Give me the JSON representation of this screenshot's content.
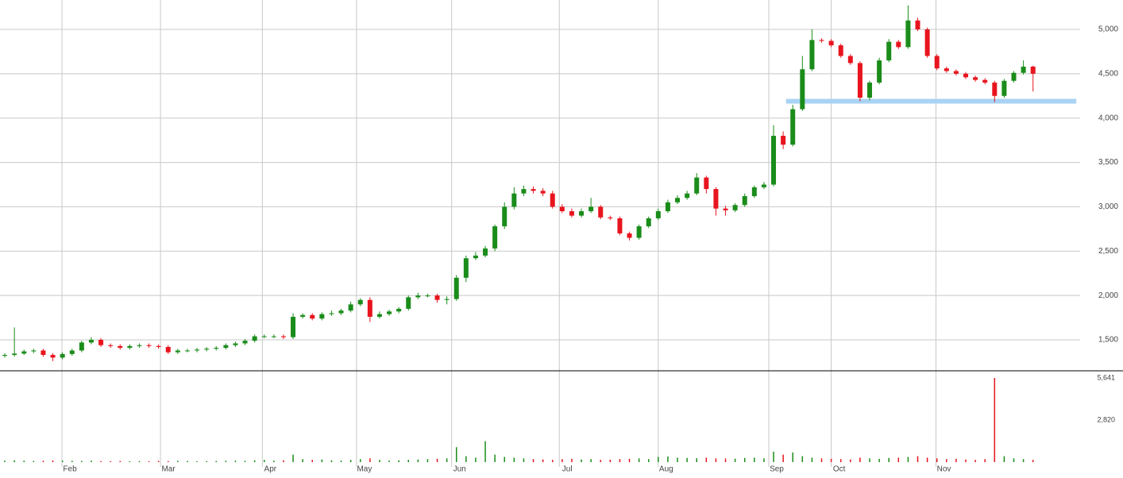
{
  "chart_data": {
    "type": "candlestick",
    "open": [
      1320,
      1330,
      1345,
      1370,
      1380,
      1330,
      1300,
      1340,
      1380,
      1470,
      1500,
      1440,
      1430,
      1410,
      1430,
      1440,
      1430,
      1420,
      1360,
      1380,
      1380,
      1390,
      1400,
      1410,
      1440,
      1460,
      1490,
      1540,
      1540,
      1540,
      1530,
      1760,
      1780,
      1740,
      1790,
      1800,
      1830,
      1900,
      1950,
      1760,
      1790,
      1820,
      1850,
      1980,
      2000,
      2000,
      1950,
      1960,
      2200,
      2420,
      2450,
      2530,
      2780,
      3000,
      3150,
      3200,
      3180,
      3150,
      3000,
      2950,
      2900,
      2950,
      3000,
      2880,
      2870,
      2700,
      2650,
      2780,
      2870,
      2950,
      3050,
      3100,
      3150,
      3330,
      3200,
      2980,
      2960,
      3020,
      3120,
      3220,
      3250,
      3800,
      3700,
      4100,
      4550,
      4880,
      4870,
      4820,
      4700,
      4620,
      4230,
      4400,
      4650,
      4860,
      4800,
      5100,
      5000,
      4700,
      4560,
      4530,
      4500,
      4460,
      4430,
      4400,
      4250,
      4420,
      4510,
      4580
    ],
    "high": [
      1350,
      1640,
      1390,
      1400,
      1400,
      1350,
      1360,
      1400,
      1490,
      1530,
      1520,
      1460,
      1450,
      1450,
      1460,
      1460,
      1450,
      1440,
      1400,
      1400,
      1410,
      1420,
      1430,
      1460,
      1480,
      1510,
      1560,
      1560,
      1560,
      1560,
      1800,
      1800,
      1800,
      1810,
      1830,
      1850,
      1930,
      1970,
      1980,
      1820,
      1840,
      1870,
      2000,
      2030,
      2020,
      2020,
      1990,
      2230,
      2450,
      2490,
      2560,
      2800,
      3050,
      3220,
      3240,
      3230,
      3210,
      3180,
      3030,
      2980,
      2980,
      3100,
      3020,
      2900,
      2890,
      2720,
      2800,
      2890,
      2980,
      3080,
      3130,
      3180,
      3380,
      3350,
      3220,
      3010,
      3040,
      3150,
      3240,
      3280,
      3920,
      3850,
      4150,
      4700,
      5000,
      4900,
      4890,
      4840,
      4720,
      4640,
      4420,
      4680,
      4890,
      4880,
      5270,
      5130,
      5020,
      4720,
      4580,
      4550,
      4520,
      4480,
      4450,
      4420,
      4440,
      4530,
      4650,
      4590
    ],
    "low": [
      1300,
      1310,
      1330,
      1350,
      1310,
      1260,
      1280,
      1320,
      1360,
      1450,
      1420,
      1410,
      1390,
      1390,
      1410,
      1410,
      1400,
      1340,
      1340,
      1360,
      1360,
      1370,
      1380,
      1390,
      1420,
      1440,
      1470,
      1520,
      1520,
      1510,
      1510,
      1740,
      1720,
      1720,
      1770,
      1780,
      1810,
      1880,
      1700,
      1740,
      1770,
      1800,
      1830,
      1960,
      1980,
      1920,
      1900,
      1940,
      2150,
      2400,
      2430,
      2500,
      2750,
      2970,
      3120,
      3150,
      3120,
      2980,
      2930,
      2880,
      2880,
      2930,
      2860,
      2850,
      2680,
      2620,
      2630,
      2760,
      2850,
      2930,
      3030,
      3080,
      3130,
      3150,
      2900,
      2900,
      2940,
      3000,
      3100,
      3200,
      3230,
      3650,
      3680,
      4080,
      4530,
      4850,
      4800,
      4680,
      4600,
      4190,
      4200,
      4380,
      4630,
      4780,
      4780,
      4980,
      4680,
      4540,
      4510,
      4480,
      4440,
      4410,
      4380,
      4180,
      4230,
      4400,
      4490,
      4300
    ],
    "close": [
      1330,
      1345,
      1370,
      1380,
      1330,
      1300,
      1340,
      1380,
      1470,
      1500,
      1440,
      1430,
      1410,
      1430,
      1440,
      1430,
      1420,
      1360,
      1380,
      1380,
      1390,
      1400,
      1410,
      1440,
      1460,
      1490,
      1540,
      1540,
      1540,
      1530,
      1760,
      1780,
      1740,
      1790,
      1800,
      1830,
      1900,
      1950,
      1760,
      1790,
      1820,
      1850,
      1980,
      2000,
      2000,
      1950,
      1960,
      2200,
      2420,
      2450,
      2530,
      2780,
      3000,
      3150,
      3200,
      3180,
      3150,
      3000,
      2950,
      2900,
      2950,
      3000,
      2880,
      2870,
      2700,
      2650,
      2780,
      2870,
      2950,
      3050,
      3100,
      3150,
      3330,
      3200,
      2980,
      2960,
      3020,
      3120,
      3220,
      3250,
      3800,
      3700,
      4100,
      4550,
      4880,
      4870,
      4820,
      4700,
      4620,
      4230,
      4400,
      4650,
      4860,
      4800,
      5100,
      5000,
      4700,
      4560,
      4530,
      4500,
      4460,
      4430,
      4400,
      4250,
      4420,
      4510,
      4580,
      4500
    ],
    "up_color": "#1a8c1a",
    "down_color": "#e8141e",
    "xlim": [
      -0.5,
      111.9
    ],
    "xticks": [
      {
        "value": 5.95,
        "label": "Feb"
      },
      {
        "value": 16.2,
        "label": "Mar"
      },
      {
        "value": 26.8,
        "label": "Apr"
      },
      {
        "value": 36.6,
        "label": "May"
      },
      {
        "value": 46.5,
        "label": "Jun"
      },
      {
        "value": 57.7,
        "label": "Jul"
      },
      {
        "value": 68,
        "label": "Aug"
      },
      {
        "value": 79.5,
        "label": "Sep"
      },
      {
        "value": 86,
        "label": "Oct"
      },
      {
        "value": 96.9,
        "label": "Nov"
      }
    ],
    "ylim": [
      1151,
      5331
    ],
    "yticks": [
      {
        "value": 1500,
        "label": "1,500"
      },
      {
        "value": 2000,
        "label": "2,000"
      },
      {
        "value": 2500,
        "label": "2,500"
      },
      {
        "value": 3000,
        "label": "3,000"
      },
      {
        "value": 3500,
        "label": "3,500"
      },
      {
        "value": 4000,
        "label": "4,000"
      },
      {
        "value": 4500,
        "label": "4,500"
      },
      {
        "value": 5000,
        "label": "5,000"
      }
    ],
    "grid": true,
    "support": {
      "value": 4190,
      "x": [
        81.3,
        111.5
      ],
      "color": "#a9d3f3"
    },
    "volume": {
      "values": [
        100,
        120,
        100,
        80,
        90,
        110,
        100,
        90,
        80,
        100,
        70,
        60,
        80,
        60,
        70,
        60,
        80,
        70,
        90,
        80,
        60,
        70,
        80,
        90,
        100,
        90,
        120,
        150,
        100,
        120,
        500,
        200,
        150,
        180,
        120,
        100,
        150,
        200,
        250,
        150,
        100,
        120,
        150,
        180,
        200,
        220,
        250,
        1000,
        400,
        300,
        1400,
        500,
        350,
        300,
        250,
        200,
        180,
        150,
        200,
        220,
        180,
        200,
        150,
        160,
        200,
        220,
        250,
        200,
        350,
        380,
        300,
        280,
        260,
        300,
        250,
        240,
        230,
        280,
        300,
        250,
        700,
        500,
        650,
        400,
        300,
        250,
        220,
        200,
        180,
        300,
        250,
        220,
        280,
        300,
        350,
        400,
        300,
        250,
        200,
        220,
        180,
        150,
        200,
        5641,
        400,
        250,
        200,
        150
      ],
      "ylim": [
        0,
        6120
      ],
      "yticks": [
        {
          "value": 2820,
          "label": "2,820"
        },
        {
          "value": 5641,
          "label": "5,641"
        }
      ]
    }
  }
}
